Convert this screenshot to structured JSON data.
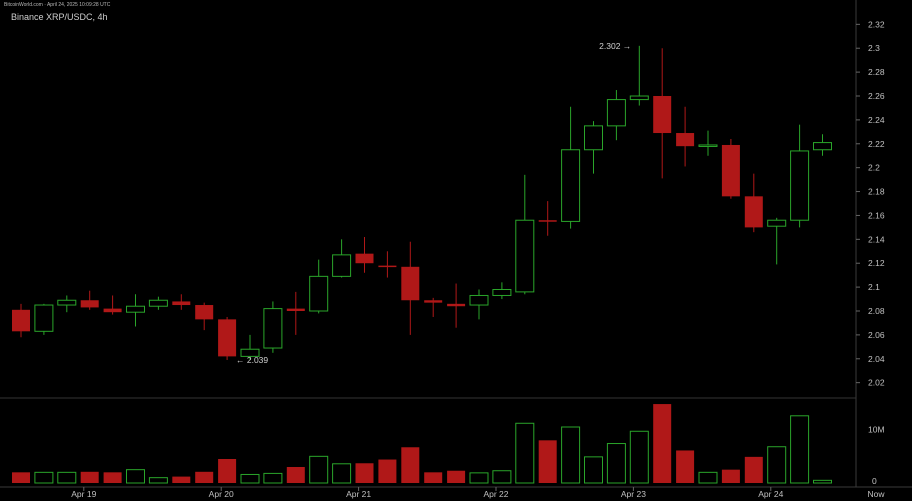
{
  "header": {
    "watermark": "BitcoinWorld.com · April 24, 2025 10:09:28 UTC",
    "title": "Binance XRP/USDC, 4h"
  },
  "chart_data": {
    "type": "candlestick",
    "title": "Binance XRP/USDC, 4h",
    "y_ticks": [
      "2.32",
      "2.3",
      "2.28",
      "2.26",
      "2.24",
      "2.22",
      "2.2",
      "2.18",
      "2.16",
      "2.14",
      "2.12",
      "2.1",
      "2.08",
      "2.06",
      "2.04",
      "2.02"
    ],
    "ylim": [
      2.008,
      2.332
    ],
    "x_ticks": [
      {
        "label": "Apr 19",
        "index": 2
      },
      {
        "label": "Apr 20",
        "index": 8
      },
      {
        "label": "Apr 21",
        "index": 14
      },
      {
        "label": "Apr 22",
        "index": 20
      },
      {
        "label": "Apr 23",
        "index": 26
      },
      {
        "label": "Apr 24",
        "index": 32
      }
    ],
    "now_label": "Now",
    "volume_ticks": [
      "10M",
      "0"
    ],
    "volume_max": 15,
    "annotations": {
      "high": {
        "label": "2.302 →",
        "value": 2.302,
        "index": 27
      },
      "low": {
        "label": "← 2.039",
        "value": 2.039,
        "index": 10
      }
    },
    "colors": {
      "up": "#2aa52a",
      "down": "#b01818",
      "axis_text": "#c0c0c0",
      "grid": "#1a1a1a"
    },
    "candles": [
      {
        "o": 2.081,
        "h": 2.086,
        "l": 2.058,
        "c": 2.063,
        "v": 2.0
      },
      {
        "o": 2.063,
        "h": 2.086,
        "l": 2.06,
        "c": 2.085,
        "v": 2.0
      },
      {
        "o": 2.085,
        "h": 2.093,
        "l": 2.079,
        "c": 2.089,
        "v": 2.0
      },
      {
        "o": 2.089,
        "h": 2.097,
        "l": 2.081,
        "c": 2.083,
        "v": 2.1
      },
      {
        "o": 2.082,
        "h": 2.093,
        "l": 2.077,
        "c": 2.079,
        "v": 2.0
      },
      {
        "o": 2.079,
        "h": 2.094,
        "l": 2.067,
        "c": 2.084,
        "v": 2.5
      },
      {
        "o": 2.084,
        "h": 2.092,
        "l": 2.081,
        "c": 2.089,
        "v": 1.0
      },
      {
        "o": 2.088,
        "h": 2.094,
        "l": 2.081,
        "c": 2.085,
        "v": 1.2
      },
      {
        "o": 2.085,
        "h": 2.087,
        "l": 2.064,
        "c": 2.073,
        "v": 2.1
      },
      {
        "o": 2.073,
        "h": 2.075,
        "l": 2.039,
        "c": 2.042,
        "v": 4.5
      },
      {
        "o": 2.042,
        "h": 2.06,
        "l": 2.039,
        "c": 2.048,
        "v": 1.6
      },
      {
        "o": 2.049,
        "h": 2.088,
        "l": 2.045,
        "c": 2.082,
        "v": 1.8
      },
      {
        "o": 2.082,
        "h": 2.096,
        "l": 2.06,
        "c": 2.08,
        "v": 3.0
      },
      {
        "o": 2.08,
        "h": 2.123,
        "l": 2.078,
        "c": 2.109,
        "v": 5.0
      },
      {
        "o": 2.109,
        "h": 2.14,
        "l": 2.108,
        "c": 2.127,
        "v": 3.6
      },
      {
        "o": 2.128,
        "h": 2.142,
        "l": 2.112,
        "c": 2.12,
        "v": 3.7
      },
      {
        "o": 2.118,
        "h": 2.13,
        "l": 2.108,
        "c": 2.117,
        "v": 4.4
      },
      {
        "o": 2.117,
        "h": 2.138,
        "l": 2.06,
        "c": 2.089,
        "v": 6.7
      },
      {
        "o": 2.089,
        "h": 2.091,
        "l": 2.075,
        "c": 2.087,
        "v": 2.0
      },
      {
        "o": 2.086,
        "h": 2.103,
        "l": 2.066,
        "c": 2.084,
        "v": 2.3
      },
      {
        "o": 2.085,
        "h": 2.098,
        "l": 2.073,
        "c": 2.093,
        "v": 1.9
      },
      {
        "o": 2.093,
        "h": 2.104,
        "l": 2.09,
        "c": 2.098,
        "v": 2.3
      },
      {
        "o": 2.096,
        "h": 2.194,
        "l": 2.094,
        "c": 2.156,
        "v": 11.2
      },
      {
        "o": 2.156,
        "h": 2.172,
        "l": 2.143,
        "c": 2.155,
        "v": 8.0
      },
      {
        "o": 2.155,
        "h": 2.251,
        "l": 2.149,
        "c": 2.215,
        "v": 10.5
      },
      {
        "o": 2.215,
        "h": 2.239,
        "l": 2.195,
        "c": 2.235,
        "v": 4.9
      },
      {
        "o": 2.235,
        "h": 2.265,
        "l": 2.223,
        "c": 2.257,
        "v": 7.4
      },
      {
        "o": 2.257,
        "h": 2.302,
        "l": 2.252,
        "c": 2.26,
        "v": 9.7
      },
      {
        "o": 2.26,
        "h": 2.3,
        "l": 2.191,
        "c": 2.229,
        "v": 14.8
      },
      {
        "o": 2.229,
        "h": 2.251,
        "l": 2.201,
        "c": 2.218,
        "v": 6.1
      },
      {
        "o": 2.218,
        "h": 2.231,
        "l": 2.21,
        "c": 2.219,
        "v": 2.0
      },
      {
        "o": 2.219,
        "h": 2.224,
        "l": 2.174,
        "c": 2.176,
        "v": 2.5
      },
      {
        "o": 2.176,
        "h": 2.195,
        "l": 2.146,
        "c": 2.15,
        "v": 4.9
      },
      {
        "o": 2.151,
        "h": 2.158,
        "l": 2.119,
        "c": 2.156,
        "v": 6.8
      },
      {
        "o": 2.156,
        "h": 2.236,
        "l": 2.15,
        "c": 2.214,
        "v": 12.6
      },
      {
        "o": 2.215,
        "h": 2.228,
        "l": 2.21,
        "c": 2.221,
        "v": 0.5
      }
    ]
  }
}
